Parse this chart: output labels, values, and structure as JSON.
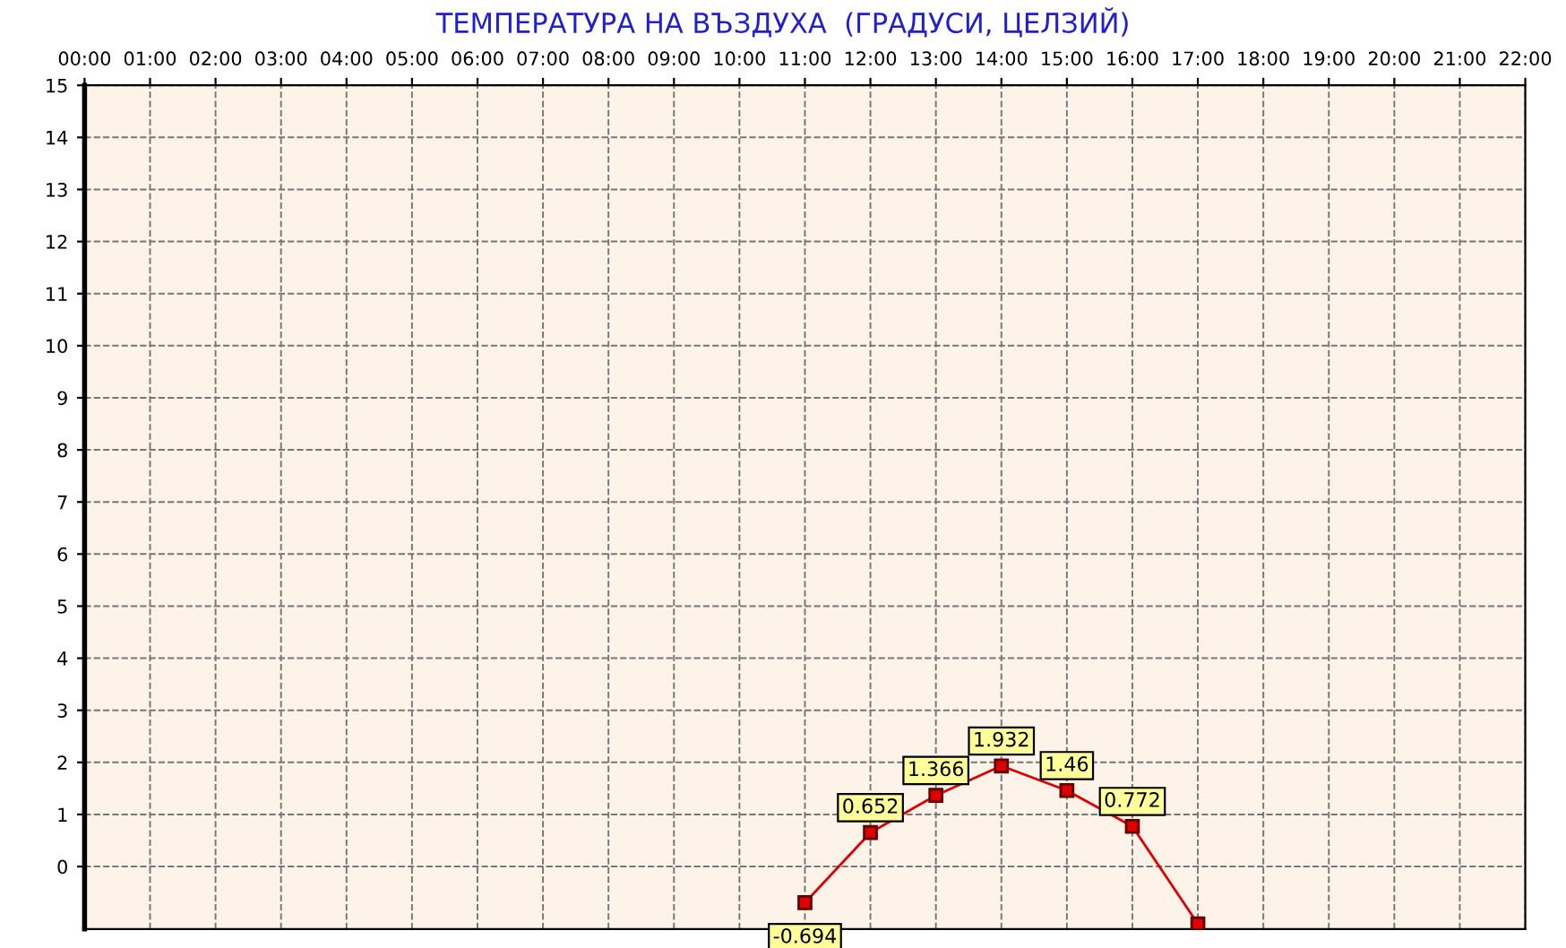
{
  "chart_data": {
    "type": "line",
    "title": "ТЕМПЕРАТУРА НА ВЪЗДУХА  (ГРАДУСИ, ЦЕЛЗИЙ)",
    "x": [
      11,
      12,
      13,
      14,
      15,
      16,
      17
    ],
    "series": [
      {
        "color": "#e00000",
        "values": [
          -0.694,
          0.652,
          1.366,
          1.932,
          1.46,
          0.772,
          -1.1
        ],
        "value_labels": [
          "-0.694",
          "0.652",
          "1.366",
          "1.932",
          "1.46",
          "0.772",
          null
        ]
      }
    ],
    "xlim": [
      0,
      22
    ],
    "xticks": [
      {
        "value": 0,
        "label": "00:00"
      },
      {
        "value": 1,
        "label": "01:00"
      },
      {
        "value": 2,
        "label": "02:00"
      },
      {
        "value": 3,
        "label": "03:00"
      },
      {
        "value": 4,
        "label": "04:00"
      },
      {
        "value": 5,
        "label": "05:00"
      },
      {
        "value": 6,
        "label": "06:00"
      },
      {
        "value": 7,
        "label": "07:00"
      },
      {
        "value": 8,
        "label": "08:00"
      },
      {
        "value": 9,
        "label": "09:00"
      },
      {
        "value": 10,
        "label": "10:00"
      },
      {
        "value": 11,
        "label": "11:00"
      },
      {
        "value": 12,
        "label": "12:00"
      },
      {
        "value": 13,
        "label": "13:00"
      },
      {
        "value": 14,
        "label": "14:00"
      },
      {
        "value": 15,
        "label": "15:00"
      },
      {
        "value": 16,
        "label": "16:00"
      },
      {
        "value": 17,
        "label": "17:00"
      },
      {
        "value": 18,
        "label": "18:00"
      },
      {
        "value": 19,
        "label": "19:00"
      },
      {
        "value": 20,
        "label": "20:00"
      },
      {
        "value": 21,
        "label": "21:00"
      },
      {
        "value": 22,
        "label": "22:00"
      }
    ],
    "ylim": [
      -1.2,
      15
    ],
    "yticks": [
      0,
      1,
      2,
      3,
      4,
      5,
      6,
      7,
      8,
      9,
      10,
      11,
      12,
      13,
      14,
      15
    ],
    "grid": true,
    "marker": "square",
    "line_style": "solid"
  }
}
